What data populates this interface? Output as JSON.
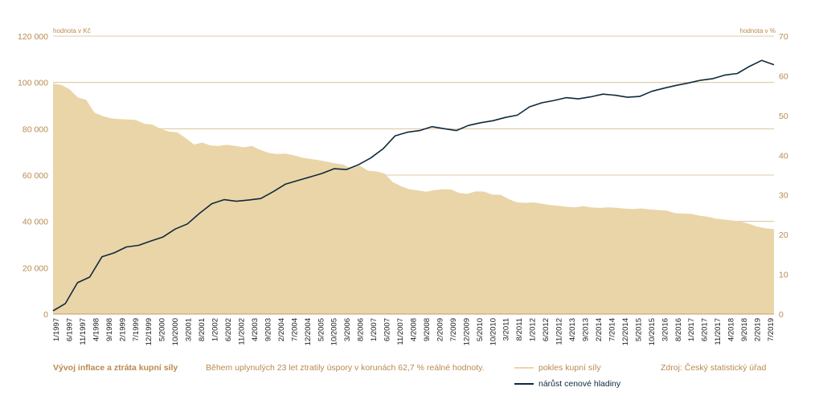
{
  "chart_data": {
    "type": "area+line",
    "y_left": {
      "label": "hodnota v Kč",
      "ylim": [
        0,
        120000
      ],
      "ticks": [
        0,
        20000,
        40000,
        60000,
        80000,
        100000,
        120000
      ],
      "tick_labels": [
        "0",
        "20 000",
        "40 000",
        "60 000",
        "80 000",
        "100 000",
        "120 000"
      ]
    },
    "y_right": {
      "label": "hodnota v %",
      "ylim": [
        0,
        70
      ],
      "ticks": [
        0,
        10,
        20,
        30,
        40,
        50,
        60,
        70
      ],
      "tick_labels": [
        "0",
        "10",
        "20",
        "30",
        "40",
        "50",
        "60",
        "70"
      ]
    },
    "x_tick_labels": [
      "1/1997",
      "6/1997",
      "11/1997",
      "4/1998",
      "9/1998",
      "2/1999",
      "7/1999",
      "12/1999",
      "5/2000",
      "10/2000",
      "3/2001",
      "8/2001",
      "1/2002",
      "6/2002",
      "11/2002",
      "4/2003",
      "9/2003",
      "2/2004",
      "7/2004",
      "12/2004",
      "5/2005",
      "10/2005",
      "3/2006",
      "8/2006",
      "1/2007",
      "6/2007",
      "11/2007",
      "4/2008",
      "9/2008",
      "2/2009",
      "7/2009",
      "12/2009",
      "5/2010",
      "10/2010",
      "3/2011",
      "8/2011",
      "1/2012",
      "6/2012",
      "11/2012",
      "4/2013",
      "9/2013",
      "2/2014",
      "7/2014",
      "12/2014",
      "5/2015",
      "10/2015",
      "3/2016",
      "8/2016",
      "1/2017",
      "6/2017",
      "11/2017",
      "4/2018",
      "9/2018",
      "2/2019",
      "7/2019"
    ],
    "series": [
      {
        "name": "pokles kupní síly",
        "axis": "left",
        "kind": "area",
        "color": "#ead5a8",
        "values": [
          99500,
          99000,
          97000,
          93500,
          92500,
          87000,
          85500,
          84500,
          84200,
          84000,
          83800,
          82200,
          81800,
          79900,
          78800,
          78400,
          76000,
          73200,
          74000,
          72800,
          72600,
          73100,
          72600,
          72000,
          72600,
          70900,
          69600,
          69100,
          69300,
          68600,
          67600,
          67000,
          66500,
          65800,
          65100,
          64500,
          62800,
          64100,
          61900,
          61600,
          60700,
          57000,
          55200,
          53900,
          53400,
          52800,
          53500,
          53900,
          53800,
          52300,
          51900,
          53000,
          52900,
          51600,
          51500,
          49600,
          48200,
          48000,
          48200,
          47600,
          47100,
          46700,
          46300,
          46100,
          46600,
          46000,
          45800,
          46100,
          45900,
          45500,
          45300,
          45600,
          45200,
          44900,
          44700,
          43600,
          43400,
          43300,
          42500,
          42000,
          41200,
          40800,
          40400,
          39900,
          38900,
          37700,
          37000,
          36700
        ]
      },
      {
        "name": "nárůst cenové hladiny",
        "axis": "right",
        "kind": "line",
        "color": "#0e2a3c",
        "values": [
          0.8,
          2.6,
          7.9,
          9.3,
          14.4,
          15.4,
          16.9,
          17.3,
          18.4,
          19.4,
          21.4,
          22.7,
          25.4,
          27.8,
          28.8,
          28.4,
          28.7,
          29.1,
          30.8,
          32.7,
          33.6,
          34.5,
          35.4,
          36.6,
          36.4,
          37.6,
          39.3,
          41.6,
          44.9,
          45.8,
          46.2,
          47.2,
          46.7,
          46.2,
          47.5,
          48.2,
          48.7,
          49.5,
          50.1,
          52.2,
          53.2,
          53.8,
          54.5,
          54.2,
          54.7,
          55.4,
          55.1,
          54.6,
          54.8,
          56.1,
          56.9,
          57.6,
          58.2,
          58.9,
          59.3,
          60.2,
          60.6,
          62.4,
          63.9,
          62.8
        ]
      }
    ],
    "legend_position": "bottom-center"
  },
  "footer": {
    "title": "Vývoj inflace a ztráta kupní síly",
    "note": "Během uplynulých 23 let ztratily úspory v korunách 62,7 % reálné hodnoty.",
    "source": "Zdroj: Český statistický úřad"
  }
}
